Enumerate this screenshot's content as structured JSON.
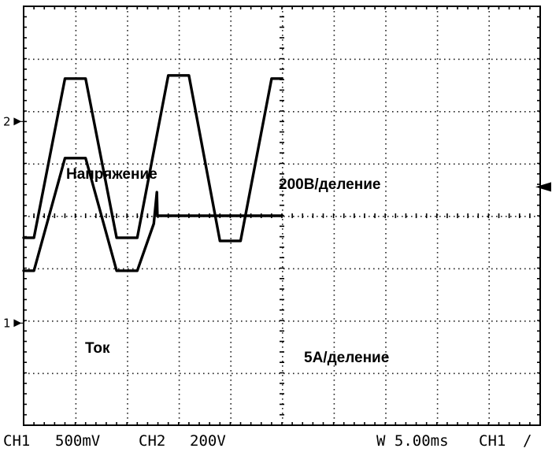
{
  "chart_data": {
    "type": "line",
    "title": "",
    "xlabel": "",
    "ylabel": "",
    "grid": true,
    "grid_divisions": {
      "x": 10,
      "y": 8
    },
    "x_unit": "ms",
    "x_per_division": 5,
    "xlim": [
      0,
      50
    ],
    "traces": [
      {
        "channel": "2",
        "label": "Напряжение",
        "scale_label": "200В/деление",
        "ylim_div": [
          -4,
          4
        ],
        "points": [
          [
            0.0,
            -0.42
          ],
          [
            1.0,
            -0.42
          ],
          [
            4.0,
            2.62
          ],
          [
            6.0,
            2.62
          ],
          [
            9.0,
            -0.42
          ],
          [
            11.0,
            -0.42
          ],
          [
            14.0,
            2.68
          ],
          [
            16.0,
            2.68
          ],
          [
            19.0,
            -0.48
          ],
          [
            21.0,
            -0.48
          ],
          [
            24.0,
            2.62
          ],
          [
            25.0,
            2.62
          ]
        ]
      },
      {
        "channel": "1",
        "label": "Ток",
        "scale_label": "5А/деление",
        "ylim_div": [
          -4,
          4
        ],
        "points": [
          [
            0.0,
            -1.05
          ],
          [
            1.0,
            -1.05
          ],
          [
            4.0,
            1.1
          ],
          [
            6.0,
            1.1
          ],
          [
            9.0,
            -1.05
          ],
          [
            11.0,
            -1.05
          ],
          [
            12.6,
            -0.15
          ],
          [
            12.9,
            0.45
          ],
          [
            12.95,
            0.0
          ],
          [
            25.0,
            0.0
          ]
        ]
      }
    ],
    "markers": [
      {
        "text": "2",
        "level_div": 1.8
      },
      {
        "text": "1",
        "level_div": -2.05
      }
    ],
    "trigger_level_div": 0.55
  },
  "status": {
    "ch1": "CH1",
    "ch1_scale": "500mV",
    "ch2": "CH2",
    "ch2_scale": "200V",
    "timebase": "W 5.00ms",
    "trigger_src": "CH1",
    "trigger_slope": "∕"
  }
}
